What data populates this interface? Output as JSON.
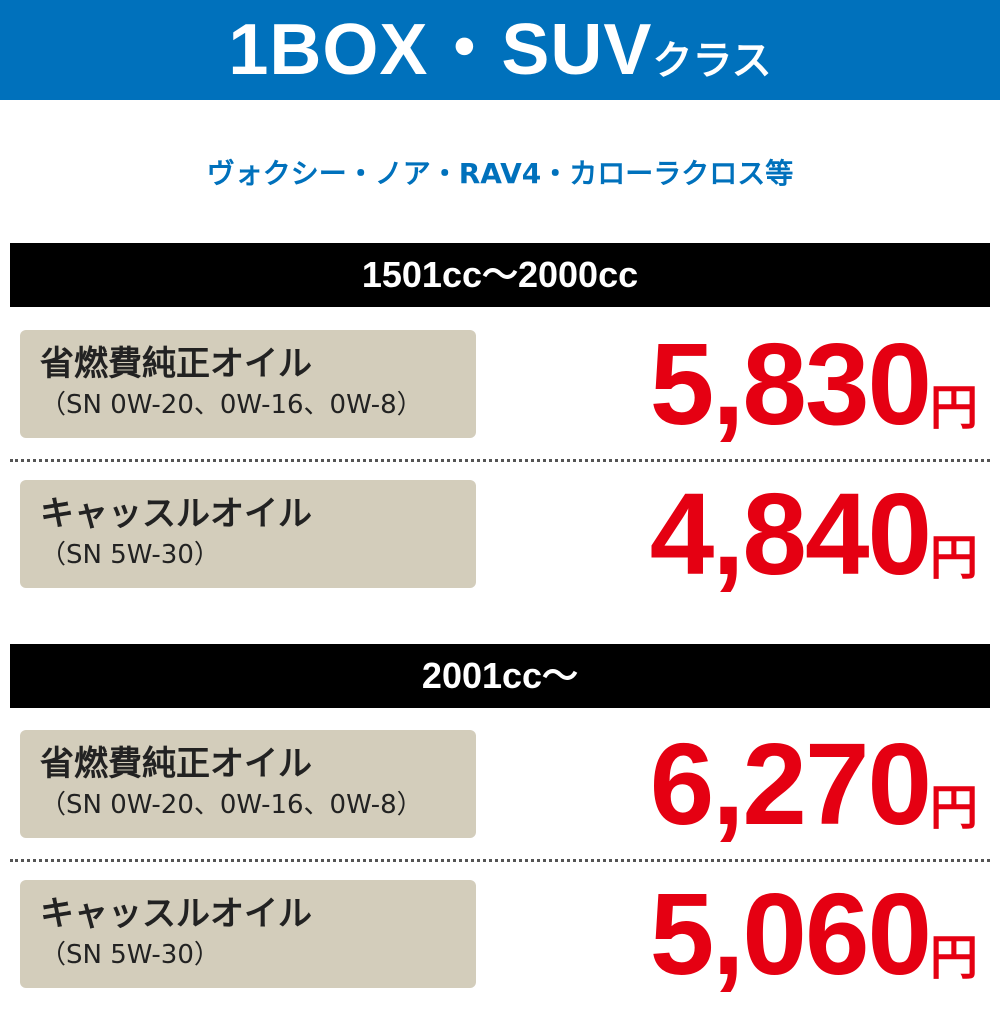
{
  "header": {
    "title_main": "1BOX・SUV",
    "title_suffix": "クラス"
  },
  "subtitle": "ヴォクシー・ノア・RAV4・カローラクロス等",
  "sections": [
    {
      "label": "1501cc～2000cc",
      "items": [
        {
          "name": "省燃費純正オイル",
          "spec": "（SN 0W-20、0W-16、0W-8）",
          "price": "5,830",
          "unit": "円"
        },
        {
          "name": "キャッスルオイル",
          "spec": "（SN 5W-30）",
          "price": "4,840",
          "unit": "円"
        }
      ]
    },
    {
      "label": "2001cc～",
      "items": [
        {
          "name": "省燃費純正オイル",
          "spec": "（SN 0W-20、0W-16、0W-8）",
          "price": "6,270",
          "unit": "円"
        },
        {
          "name": "キャッスルオイル",
          "spec": "（SN 5W-30）",
          "price": "5,060",
          "unit": "円"
        }
      ]
    }
  ],
  "colors": {
    "brand_blue": "#0071bc",
    "price_red": "#e50012",
    "box_beige": "#d3cdbb"
  }
}
